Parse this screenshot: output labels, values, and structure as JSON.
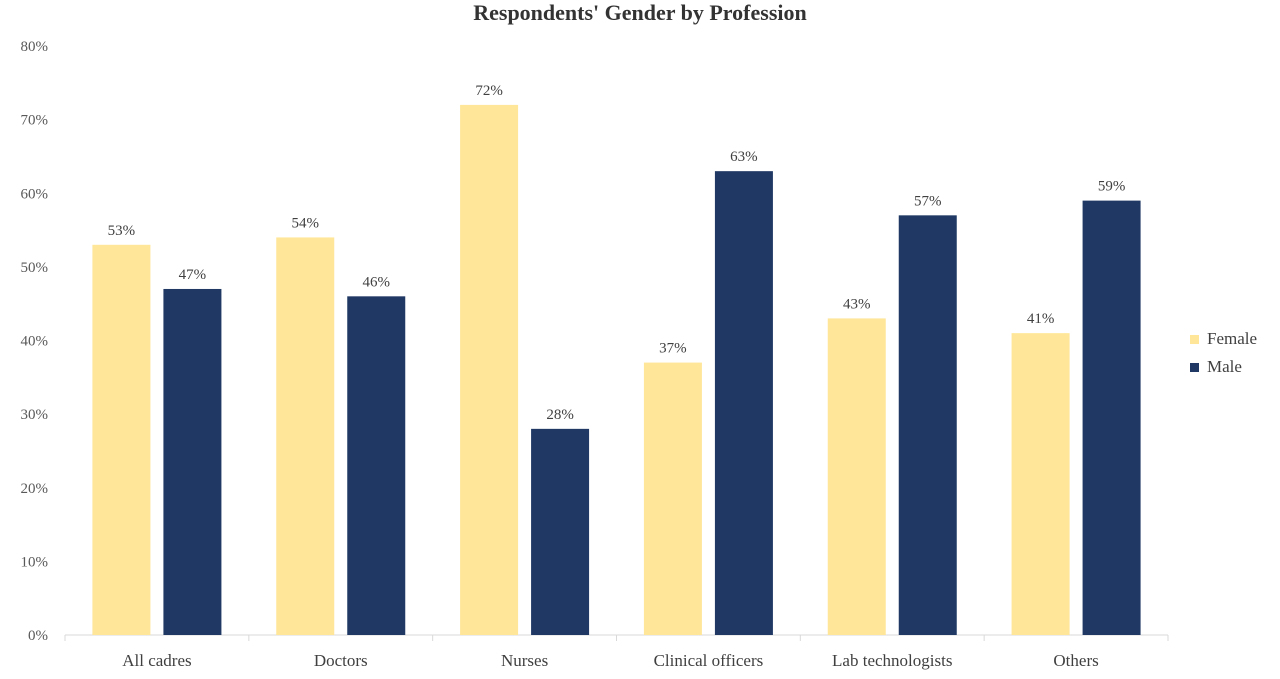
{
  "chart_data": {
    "type": "bar",
    "title": "Respondents' Gender by Profession",
    "categories": [
      "All cadres",
      "Doctors",
      "Nurses",
      "Clinical officers",
      "Lab technologists",
      "Others"
    ],
    "series": [
      {
        "name": "Female",
        "color": "#FFE699",
        "values": [
          53,
          54,
          72,
          37,
          43,
          41
        ],
        "labels": [
          "53%",
          "54%",
          "72%",
          "37%",
          "43%",
          "41%"
        ]
      },
      {
        "name": "Male",
        "color": "#1F3864",
        "values": [
          47,
          46,
          28,
          63,
          57,
          59
        ],
        "labels": [
          "47%",
          "46%",
          "28%",
          "63%",
          "57%",
          "59%"
        ]
      }
    ],
    "ylim": [
      0,
      80
    ],
    "yticks": [
      0,
      10,
      20,
      30,
      40,
      50,
      60,
      70,
      80
    ],
    "ytick_labels": [
      "0%",
      "10%",
      "20%",
      "30%",
      "40%",
      "50%",
      "60%",
      "70%",
      "80%"
    ],
    "grid": false,
    "legend_position": "right"
  }
}
